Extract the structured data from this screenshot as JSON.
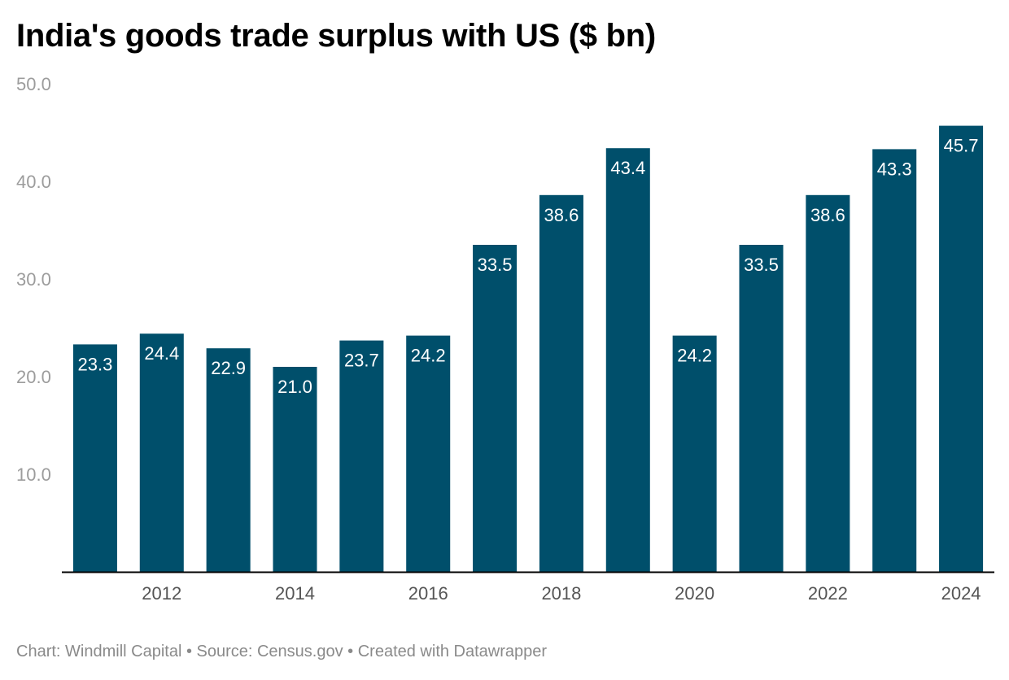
{
  "chart_data": {
    "type": "bar",
    "title": "India's goods trade surplus with US ($ bn)",
    "categories": [
      "2011",
      "2012",
      "2013",
      "2014",
      "2015",
      "2016",
      "2017",
      "2018",
      "2019",
      "2020",
      "2021",
      "2022",
      "2023",
      "2024"
    ],
    "values": [
      23.3,
      24.4,
      22.9,
      21.0,
      23.7,
      24.2,
      33.5,
      38.6,
      43.4,
      24.2,
      33.5,
      38.6,
      43.3,
      45.7
    ],
    "data_labels": [
      "23.3",
      "24.4",
      "22.9",
      "21.0",
      "23.7",
      "24.2",
      "33.5",
      "38.6",
      "43.4",
      "24.2",
      "33.5",
      "38.6",
      "43.3",
      "45.7"
    ],
    "x_tick_labels": [
      "2012",
      "2014",
      "2016",
      "2018",
      "2020",
      "2022",
      "2024"
    ],
    "y_ticks": [
      10,
      20,
      30,
      40,
      50
    ],
    "y_tick_labels": [
      "10.0",
      "20.0",
      "30.0",
      "40.0",
      "50.0"
    ],
    "ylim": [
      0,
      50
    ],
    "xlabel": "",
    "ylabel": "",
    "grid": false,
    "bar_color": "#004f6b"
  },
  "footer": "Chart: Windmill Capital • Source: Census.gov • Created with Datawrapper"
}
